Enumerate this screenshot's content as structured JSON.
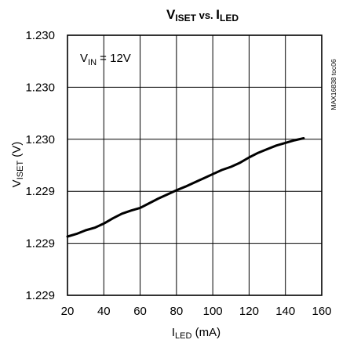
{
  "chart_data": {
    "type": "line",
    "title_main": "V",
    "title_main_sub": "ISET",
    "title_vs": " vs. ",
    "title_second": "I",
    "title_second_sub": "LED",
    "annotation": {
      "prefix": "V",
      "sub": "IN",
      "suffix": " = 12V"
    },
    "part_number": "MAX16838 toc06",
    "xlabel": {
      "prefix": "I",
      "sub": "LED",
      "suffix": " (mA)"
    },
    "ylabel": {
      "prefix": "V",
      "sub": "ISET",
      "suffix": " (V)"
    },
    "xlim": [
      20,
      160
    ],
    "ylim": [
      0,
      5
    ],
    "x_ticks": [
      20,
      40,
      60,
      80,
      100,
      120,
      140,
      160
    ],
    "y_ticks": [
      0,
      1,
      2,
      3,
      4,
      5
    ],
    "y_tick_labels": [
      "1.229",
      "1.229",
      "1.229",
      "1.230",
      "1.230",
      "1.230"
    ],
    "grid": true,
    "series": [
      {
        "x": [
          20,
          25,
          30,
          35,
          40,
          45,
          50,
          55,
          60,
          65,
          70,
          75,
          80,
          85,
          90,
          95,
          100,
          105,
          110,
          115,
          120,
          125,
          130,
          135,
          140,
          145,
          150
        ],
        "y": [
          1.13,
          1.18,
          1.25,
          1.3,
          1.38,
          1.48,
          1.57,
          1.63,
          1.68,
          1.77,
          1.86,
          1.94,
          2.02,
          2.09,
          2.17,
          2.25,
          2.33,
          2.41,
          2.47,
          2.55,
          2.65,
          2.74,
          2.81,
          2.88,
          2.93,
          2.98,
          3.02
        ]
      }
    ]
  }
}
